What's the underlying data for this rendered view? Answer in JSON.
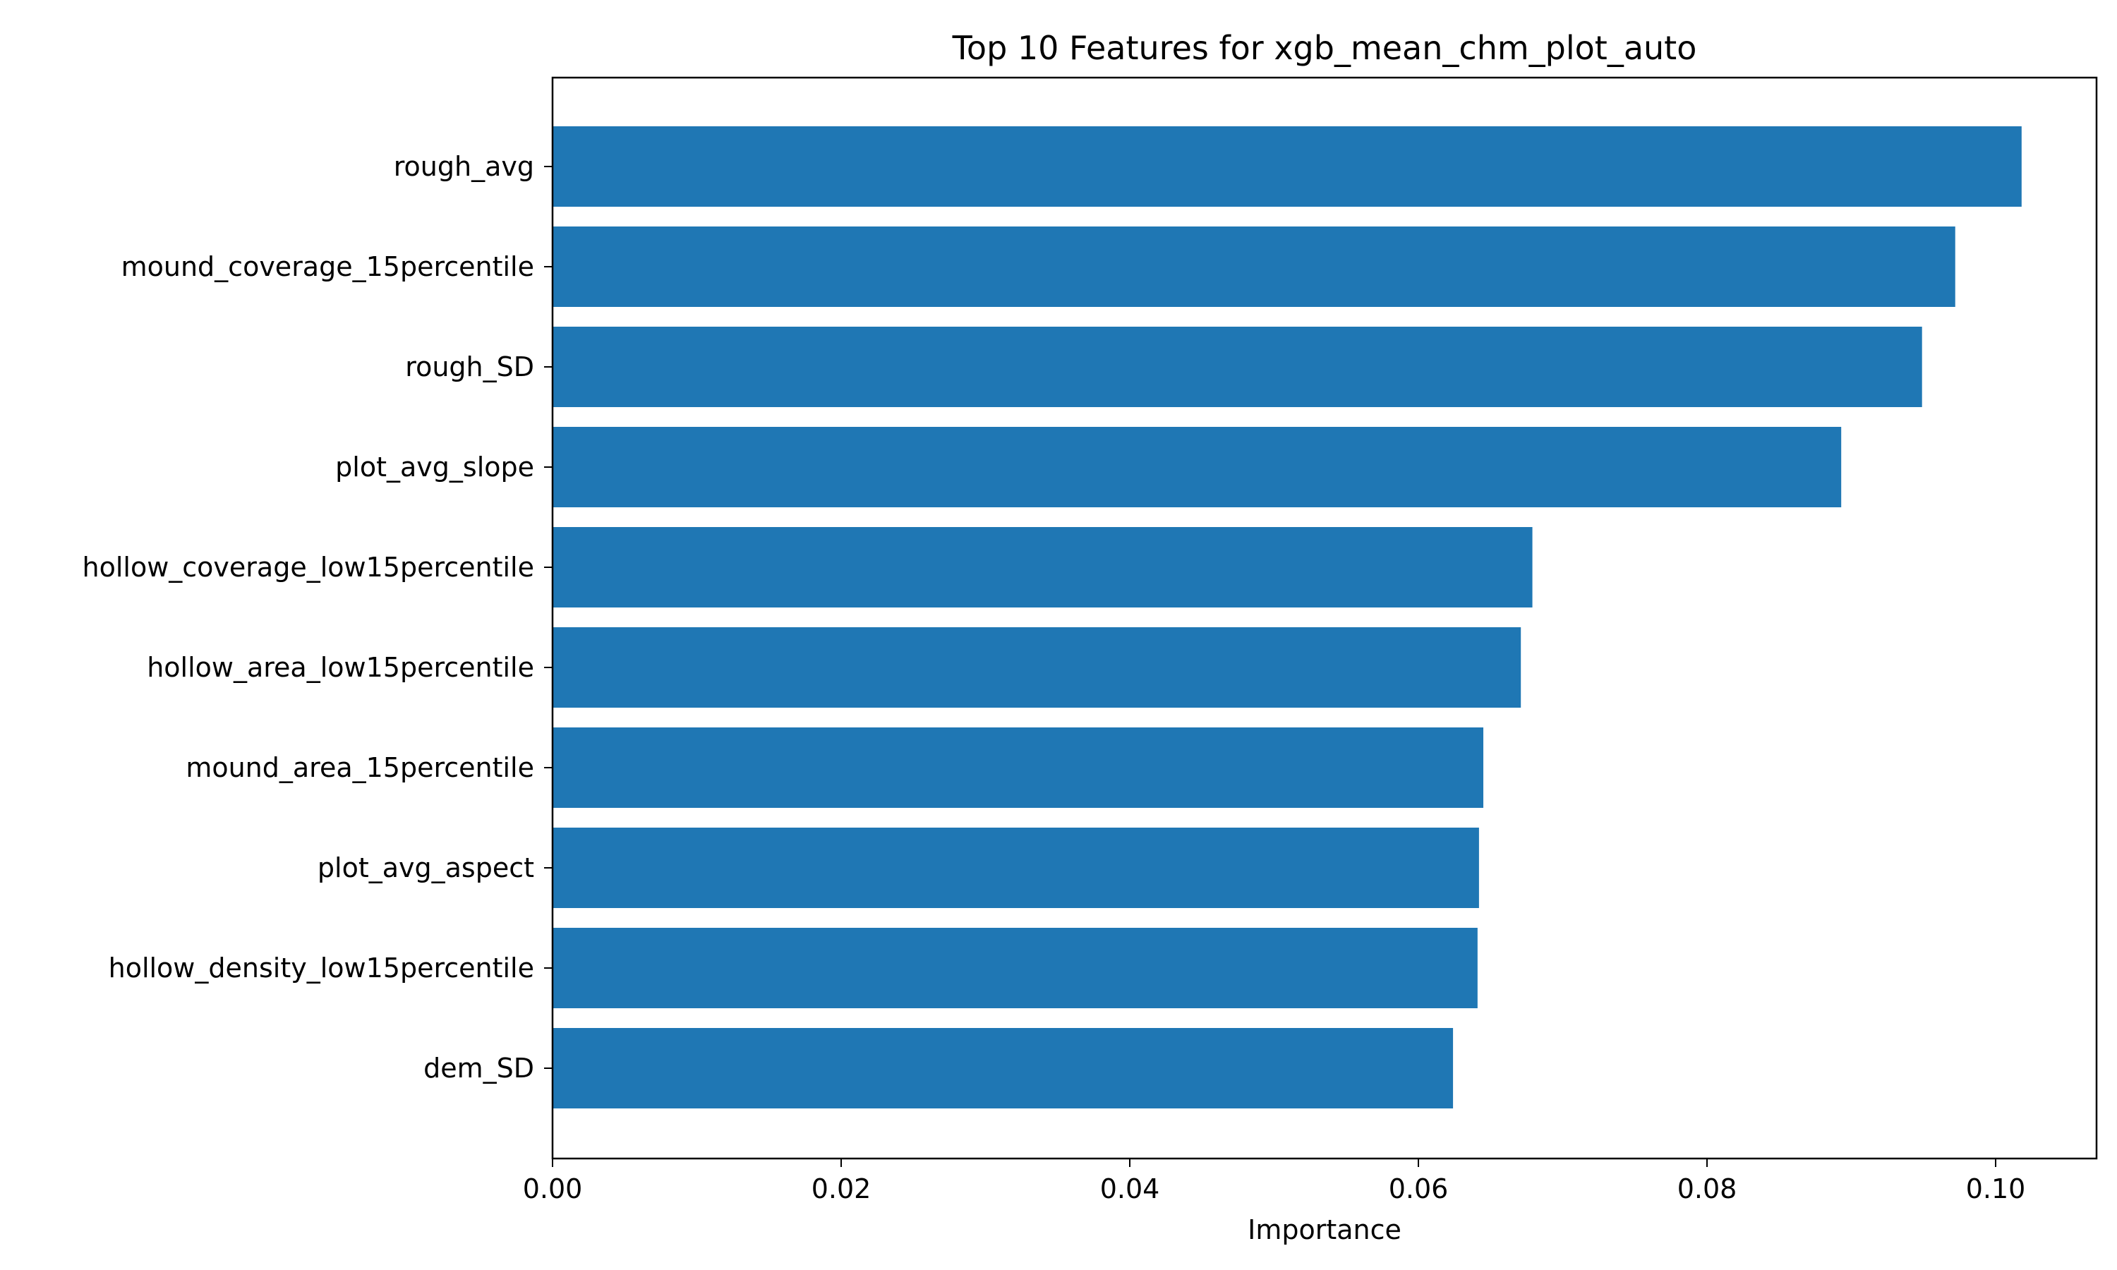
{
  "chart_data": {
    "type": "bar",
    "orientation": "horizontal",
    "title": "Top 10 Features for xgb_mean_chm_plot_auto",
    "xlabel": "Importance",
    "ylabel": "",
    "categories": [
      "rough_avg",
      "mound_coverage_15percentile",
      "rough_SD",
      "plot_avg_slope",
      "hollow_coverage_low15percentile",
      "hollow_area_low15percentile",
      "mound_area_15percentile",
      "plot_avg_aspect",
      "hollow_density_low15percentile",
      "dem_SD"
    ],
    "values": [
      0.1018,
      0.0972,
      0.0949,
      0.0893,
      0.0679,
      0.0671,
      0.0645,
      0.0642,
      0.0641,
      0.0624
    ],
    "xlim": [
      0,
      0.107
    ],
    "xticks": [
      0.0,
      0.02,
      0.04,
      0.06,
      0.08,
      0.1
    ],
    "xtick_labels": [
      "0.00",
      "0.02",
      "0.04",
      "0.06",
      "0.08",
      "0.10"
    ],
    "grid": false,
    "legend": false,
    "bar_color": "#1f77b4"
  }
}
